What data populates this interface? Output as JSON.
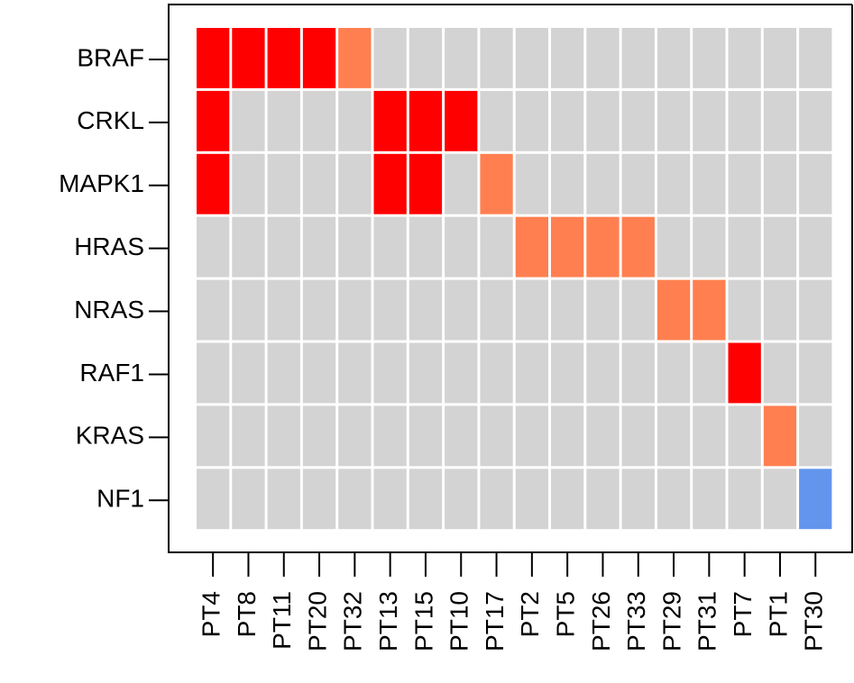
{
  "chart_data": {
    "type": "heatmap",
    "rows": [
      "BRAF",
      "CRKL",
      "MAPK1",
      "HRAS",
      "NRAS",
      "RAF1",
      "KRAS",
      "NF1"
    ],
    "columns": [
      "PT4",
      "PT8",
      "PT11",
      "PT20",
      "PT32",
      "PT13",
      "PT15",
      "PT10",
      "PT17",
      "PT2",
      "PT5",
      "PT26",
      "PT33",
      "PT29",
      "PT31",
      "PT7",
      "PT1",
      "PT30"
    ],
    "cell_colors": [
      [
        "#ff0000",
        "#ff0000",
        "#ff0000",
        "#ff0000",
        "#ff7f50",
        "#d3d3d3",
        "#d3d3d3",
        "#d3d3d3",
        "#d3d3d3",
        "#d3d3d3",
        "#d3d3d3",
        "#d3d3d3",
        "#d3d3d3",
        "#d3d3d3",
        "#d3d3d3",
        "#d3d3d3",
        "#d3d3d3",
        "#d3d3d3"
      ],
      [
        "#ff0000",
        "#d3d3d3",
        "#d3d3d3",
        "#d3d3d3",
        "#d3d3d3",
        "#ff0000",
        "#ff0000",
        "#ff0000",
        "#d3d3d3",
        "#d3d3d3",
        "#d3d3d3",
        "#d3d3d3",
        "#d3d3d3",
        "#d3d3d3",
        "#d3d3d3",
        "#d3d3d3",
        "#d3d3d3",
        "#d3d3d3"
      ],
      [
        "#ff0000",
        "#d3d3d3",
        "#d3d3d3",
        "#d3d3d3",
        "#d3d3d3",
        "#ff0000",
        "#ff0000",
        "#d3d3d3",
        "#ff7f50",
        "#d3d3d3",
        "#d3d3d3",
        "#d3d3d3",
        "#d3d3d3",
        "#d3d3d3",
        "#d3d3d3",
        "#d3d3d3",
        "#d3d3d3",
        "#d3d3d3"
      ],
      [
        "#d3d3d3",
        "#d3d3d3",
        "#d3d3d3",
        "#d3d3d3",
        "#d3d3d3",
        "#d3d3d3",
        "#d3d3d3",
        "#d3d3d3",
        "#d3d3d3",
        "#ff7f50",
        "#ff7f50",
        "#ff7f50",
        "#ff7f50",
        "#d3d3d3",
        "#d3d3d3",
        "#d3d3d3",
        "#d3d3d3",
        "#d3d3d3"
      ],
      [
        "#d3d3d3",
        "#d3d3d3",
        "#d3d3d3",
        "#d3d3d3",
        "#d3d3d3",
        "#d3d3d3",
        "#d3d3d3",
        "#d3d3d3",
        "#d3d3d3",
        "#d3d3d3",
        "#d3d3d3",
        "#d3d3d3",
        "#d3d3d3",
        "#ff7f50",
        "#ff7f50",
        "#d3d3d3",
        "#d3d3d3",
        "#d3d3d3"
      ],
      [
        "#d3d3d3",
        "#d3d3d3",
        "#d3d3d3",
        "#d3d3d3",
        "#d3d3d3",
        "#d3d3d3",
        "#d3d3d3",
        "#d3d3d3",
        "#d3d3d3",
        "#d3d3d3",
        "#d3d3d3",
        "#d3d3d3",
        "#d3d3d3",
        "#d3d3d3",
        "#d3d3d3",
        "#ff0000",
        "#d3d3d3",
        "#d3d3d3"
      ],
      [
        "#d3d3d3",
        "#d3d3d3",
        "#d3d3d3",
        "#d3d3d3",
        "#d3d3d3",
        "#d3d3d3",
        "#d3d3d3",
        "#d3d3d3",
        "#d3d3d3",
        "#d3d3d3",
        "#d3d3d3",
        "#d3d3d3",
        "#d3d3d3",
        "#d3d3d3",
        "#d3d3d3",
        "#d3d3d3",
        "#ff7f50",
        "#d3d3d3"
      ],
      [
        "#d3d3d3",
        "#d3d3d3",
        "#d3d3d3",
        "#d3d3d3",
        "#d3d3d3",
        "#d3d3d3",
        "#d3d3d3",
        "#d3d3d3",
        "#d3d3d3",
        "#d3d3d3",
        "#d3d3d3",
        "#d3d3d3",
        "#d3d3d3",
        "#d3d3d3",
        "#d3d3d3",
        "#d3d3d3",
        "#d3d3d3",
        "#6495ed"
      ]
    ]
  }
}
